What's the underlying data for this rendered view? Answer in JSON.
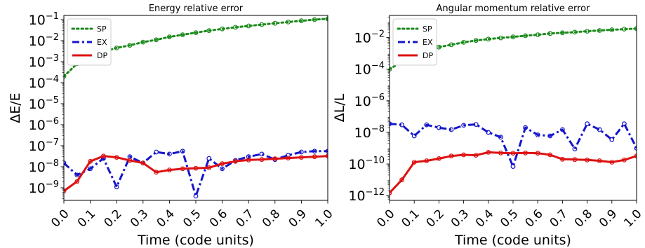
{
  "chart_data": [
    {
      "type": "line",
      "title": "Energy relative error",
      "xlabel": "Time (code units)",
      "ylabel_main": "ΔE/E",
      "yscale": "log",
      "xlim": [
        0.0,
        1.0
      ],
      "ylim_exp": [
        -9.6,
        -0.8
      ],
      "xticks": [
        "0.0",
        "0.1",
        "0.2",
        "0.3",
        "0.4",
        "0.5",
        "0.6",
        "0.7",
        "0.8",
        "0.9",
        "1.0"
      ],
      "yticks": [
        {
          "exp": -1,
          "label": "10",
          "sup": "−1"
        },
        {
          "exp": -2,
          "label": "10",
          "sup": "−2"
        },
        {
          "exp": -3,
          "label": "10",
          "sup": "−3"
        },
        {
          "exp": -4,
          "label": "10",
          "sup": "−4"
        },
        {
          "exp": -5,
          "label": "10",
          "sup": "−5"
        },
        {
          "exp": -6,
          "label": "10",
          "sup": "−6"
        },
        {
          "exp": -7,
          "label": "10",
          "sup": "−7"
        },
        {
          "exp": -8,
          "label": "10",
          "sup": "−8"
        },
        {
          "exp": -9,
          "label": "10",
          "sup": "−9"
        }
      ],
      "legend_position": "top-left",
      "series": [
        {
          "name": "SP",
          "color": "#1a8a1a",
          "dash": "dotted",
          "x": [
            0.0,
            0.05,
            0.1,
            0.15,
            0.2,
            0.25,
            0.3,
            0.35,
            0.4,
            0.45,
            0.5,
            0.55,
            0.6,
            0.65,
            0.7,
            0.75,
            0.8,
            0.85,
            0.9,
            0.95,
            1.0
          ],
          "y": [
            0.0002,
            0.0008,
            0.0018,
            0.003,
            0.0045,
            0.006,
            0.0085,
            0.011,
            0.015,
            0.019,
            0.024,
            0.03,
            0.036,
            0.043,
            0.05,
            0.058,
            0.067,
            0.077,
            0.088,
            0.1,
            0.11
          ]
        },
        {
          "name": "EX",
          "color": "#1515cc",
          "dash": "dashdot",
          "x": [
            0.0,
            0.05,
            0.1,
            0.15,
            0.2,
            0.25,
            0.3,
            0.35,
            0.4,
            0.45,
            0.5,
            0.55,
            0.6,
            0.65,
            0.7,
            0.75,
            0.8,
            0.85,
            0.9,
            0.95,
            1.0
          ],
          "y": [
            1.5e-08,
            4e-09,
            8e-09,
            2.5e-08,
            1.1e-09,
            3e-08,
            1.5e-08,
            5e-08,
            4e-08,
            5.5e-08,
            4e-10,
            2.5e-08,
            8e-09,
            2e-08,
            3e-08,
            4e-08,
            2.2e-08,
            3.5e-08,
            5e-08,
            5.5e-08,
            5.5e-08
          ]
        },
        {
          "name": "DP",
          "color": "#dd1111",
          "dash": "solid",
          "x": [
            0.0,
            0.05,
            0.1,
            0.15,
            0.2,
            0.25,
            0.3,
            0.35,
            0.4,
            0.45,
            0.5,
            0.55,
            0.6,
            0.65,
            0.7,
            0.75,
            0.8,
            0.85,
            0.9,
            0.95,
            1.0
          ],
          "y": [
            7e-10,
            2e-09,
            1.8e-08,
            3.2e-08,
            2.8e-08,
            2e-08,
            1.5e-08,
            5.5e-09,
            7e-09,
            8e-09,
            8.5e-09,
            9e-09,
            1.4e-08,
            1.8e-08,
            2.1e-08,
            2.2e-08,
            2.4e-08,
            2.6e-08,
            2.8e-08,
            3e-08,
            3.2e-08
          ]
        }
      ]
    },
    {
      "type": "line",
      "title": "Angular momentum relative error",
      "xlabel": "Time (code units)",
      "ylabel_main": "ΔL/L",
      "yscale": "log",
      "xlim": [
        0.0,
        1.0
      ],
      "ylim_exp": [
        -12.3,
        -0.6
      ],
      "xticks": [
        "0.0",
        "0.1",
        "0.2",
        "0.3",
        "0.4",
        "0.5",
        "0.6",
        "0.7",
        "0.8",
        "0.9",
        "1.0"
      ],
      "yticks": [
        {
          "exp": -2,
          "label": "10",
          "sup": "−2"
        },
        {
          "exp": -4,
          "label": "10",
          "sup": "−4"
        },
        {
          "exp": -6,
          "label": "10",
          "sup": "−6"
        },
        {
          "exp": -8,
          "label": "10",
          "sup": "−8"
        },
        {
          "exp": -10,
          "label": "10",
          "sup": "−10"
        },
        {
          "exp": -12,
          "label": "10",
          "sup": "−12"
        }
      ],
      "legend_position": "top-left",
      "series": [
        {
          "name": "SP",
          "color": "#1a8a1a",
          "dash": "dotted",
          "x": [
            0.0,
            0.05,
            0.1,
            0.15,
            0.2,
            0.25,
            0.3,
            0.35,
            0.4,
            0.45,
            0.5,
            0.55,
            0.6,
            0.65,
            0.7,
            0.75,
            0.8,
            0.85,
            0.9,
            0.95,
            1.0
          ],
          "y": [
            0.0001,
            0.0003,
            0.0008,
            0.0015,
            0.0025,
            0.0035,
            0.005,
            0.0065,
            0.008,
            0.0095,
            0.011,
            0.013,
            0.015,
            0.018,
            0.02,
            0.022,
            0.025,
            0.028,
            0.031,
            0.034,
            0.037
          ]
        },
        {
          "name": "EX",
          "color": "#1515cc",
          "dash": "dashdot",
          "x": [
            0.0,
            0.05,
            0.1,
            0.15,
            0.2,
            0.25,
            0.3,
            0.35,
            0.4,
            0.45,
            0.5,
            0.55,
            0.6,
            0.65,
            0.7,
            0.75,
            0.8,
            0.85,
            0.9,
            0.95,
            1.0
          ],
          "y": [
            3.5e-08,
            3e-08,
            6e-09,
            3e-08,
            2e-08,
            1.5e-08,
            2.8e-08,
            3.2e-08,
            1e-08,
            5e-09,
            7e-11,
            2e-08,
            7e-09,
            6e-09,
            1.5e-08,
            9e-10,
            3.5e-08,
            1.5e-08,
            3.5e-09,
            3.5e-08,
            1e-09
          ]
        },
        {
          "name": "DP",
          "color": "#dd1111",
          "dash": "solid",
          "x": [
            0.0,
            0.05,
            0.1,
            0.15,
            0.2,
            0.25,
            0.3,
            0.35,
            0.4,
            0.45,
            0.5,
            0.55,
            0.6,
            0.65,
            0.7,
            0.75,
            0.8,
            0.85,
            0.9,
            0.95,
            1.0
          ],
          "y": [
            1.5e-12,
            1e-11,
            1.3e-10,
            1.6e-10,
            2.2e-10,
            3.2e-10,
            3.8e-10,
            3.6e-10,
            5.5e-10,
            5e-10,
            4.8e-10,
            5e-10,
            4.8e-10,
            3.8e-10,
            2e-10,
            1.9e-10,
            1.8e-10,
            1.6e-10,
            1.3e-10,
            1.8e-10,
            3.2e-10
          ]
        }
      ]
    }
  ]
}
